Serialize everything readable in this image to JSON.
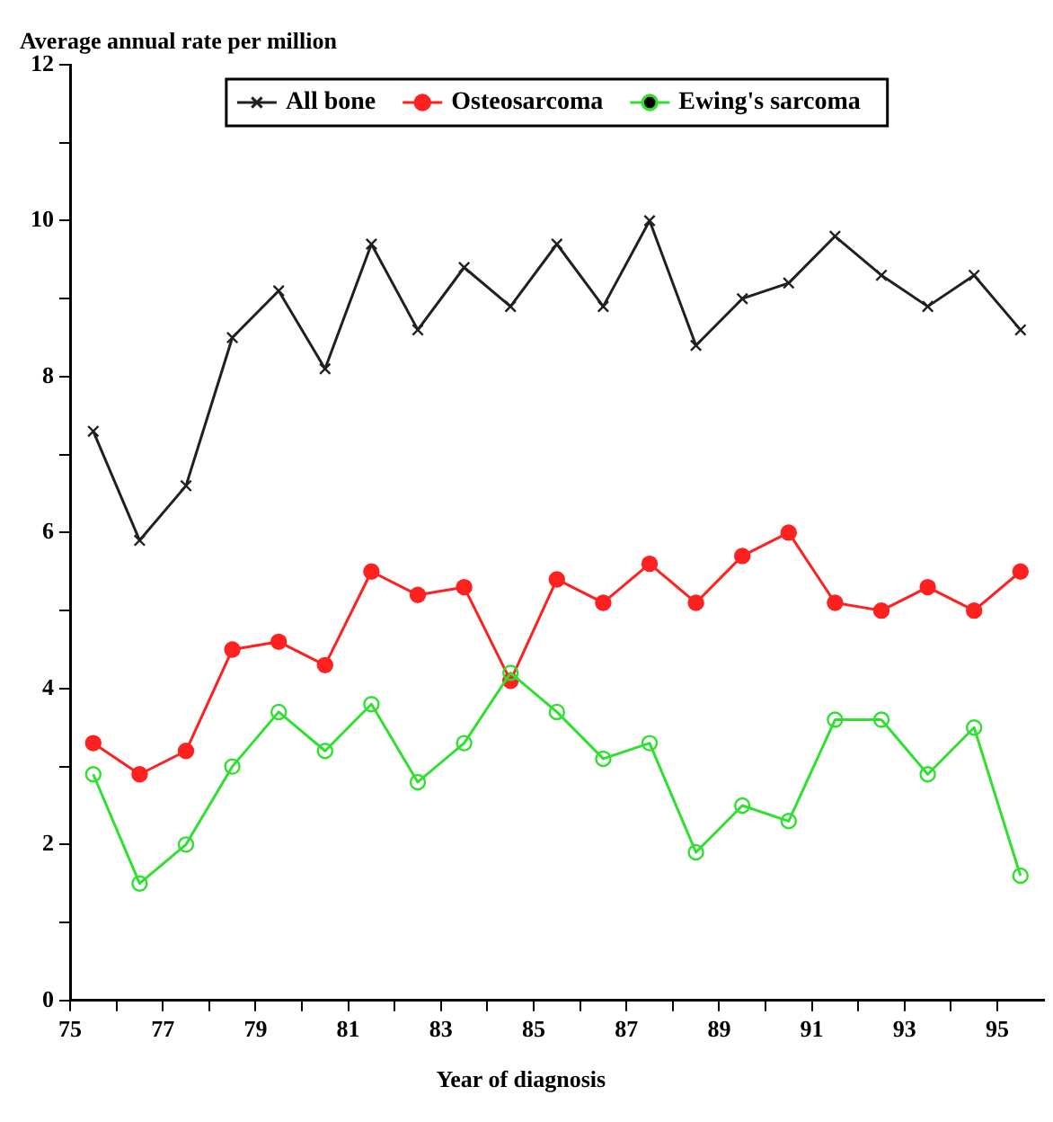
{
  "chart_data": {
    "type": "line",
    "ylabel": "Average annual rate per million",
    "xlabel": "Year of diagnosis",
    "x": [
      75.5,
      76.5,
      77.5,
      78.5,
      79.5,
      80.5,
      81.5,
      82.5,
      83.5,
      84.5,
      85.5,
      86.5,
      87.5,
      88.5,
      89.5,
      90.5,
      91.5,
      92.5,
      93.5,
      94.5,
      95.5
    ],
    "series": [
      {
        "name": "All bone",
        "color": "#202020",
        "marker": "cross",
        "values": [
          7.3,
          5.9,
          6.6,
          8.5,
          9.1,
          8.1,
          9.7,
          8.6,
          9.4,
          8.9,
          9.7,
          8.9,
          10.0,
          8.4,
          9.0,
          9.2,
          9.8,
          9.3,
          8.9,
          9.3,
          8.6
        ]
      },
      {
        "name": "Osteosarcoma",
        "color": "#ff2020",
        "marker": "circle",
        "values": [
          3.3,
          2.9,
          3.2,
          4.5,
          4.6,
          4.3,
          5.5,
          5.2,
          5.3,
          4.1,
          5.4,
          5.1,
          5.6,
          5.1,
          5.7,
          6.0,
          5.1,
          5.0,
          5.3,
          5.0,
          5.5
        ]
      },
      {
        "name": "Ewing's sarcoma",
        "color": "#30e030",
        "marker": "circle-open",
        "values": [
          2.9,
          1.5,
          2.0,
          3.0,
          3.7,
          3.2,
          3.8,
          2.8,
          3.3,
          4.2,
          3.7,
          3.1,
          3.3,
          1.9,
          2.5,
          2.3,
          3.6,
          3.6,
          2.9,
          3.5,
          1.6
        ]
      }
    ],
    "xlim": [
      75,
      96
    ],
    "xticks": [
      75,
      {
        "value": 76,
        "label": null
      },
      77,
      {
        "value": 78,
        "label": null
      },
      79,
      {
        "value": 80,
        "label": null
      },
      81,
      {
        "value": 82,
        "label": null
      },
      83,
      {
        "value": 84,
        "label": null
      },
      85,
      {
        "value": 86,
        "label": null
      },
      87,
      {
        "value": 88,
        "label": null
      },
      89,
      {
        "value": 90,
        "label": null
      },
      91,
      {
        "value": 92,
        "label": null
      },
      93,
      {
        "value": 94,
        "label": null
      },
      95
    ],
    "ylim": [
      0,
      12
    ],
    "yticks": [
      0,
      {
        "value": 1,
        "label": null
      },
      2,
      {
        "value": 3,
        "label": null
      },
      4,
      {
        "value": 5,
        "label": null
      },
      6,
      {
        "value": 7,
        "label": null
      },
      8,
      {
        "value": 9,
        "label": null
      },
      10,
      {
        "value": 11,
        "label": null
      },
      12
    ],
    "grid": false,
    "legend": "top",
    "line_style": "solid"
  }
}
